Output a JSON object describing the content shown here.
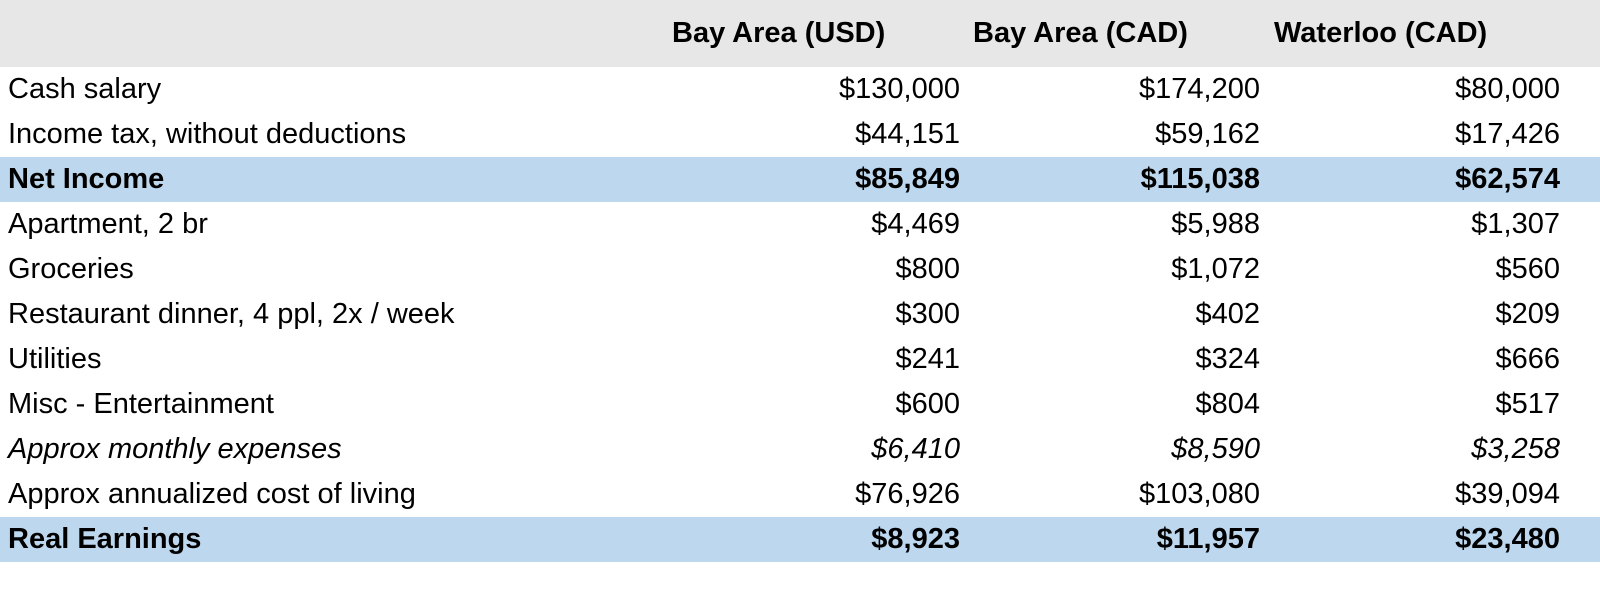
{
  "table": {
    "columns": [
      "Bay Area (USD)",
      "Bay Area (CAD)",
      "Waterloo (CAD)"
    ],
    "rows": [
      {
        "label": "Cash salary",
        "values": [
          "$130,000",
          "$174,200",
          "$80,000"
        ]
      },
      {
        "label": "Income tax, without deductions",
        "values": [
          "$44,151",
          "$59,162",
          "$17,426"
        ]
      },
      {
        "label": "Net Income",
        "values": [
          "$85,849",
          "$115,038",
          "$62,574"
        ],
        "style": "highlight"
      },
      {
        "label": "Apartment, 2 br",
        "values": [
          "$4,469",
          "$5,988",
          "$1,307"
        ]
      },
      {
        "label": "Groceries",
        "values": [
          "$800",
          "$1,072",
          "$560"
        ]
      },
      {
        "label": "Restaurant dinner, 4 ppl, 2x / week",
        "values": [
          "$300",
          "$402",
          "$209"
        ]
      },
      {
        "label": "Utilities",
        "values": [
          "$241",
          "$324",
          "$666"
        ]
      },
      {
        "label": "Misc - Entertainment",
        "values": [
          "$600",
          "$804",
          "$517"
        ]
      },
      {
        "label": "Approx monthly expenses",
        "values": [
          "$6,410",
          "$8,590",
          "$3,258"
        ],
        "style": "italic"
      },
      {
        "label": "Approx annualized cost of living",
        "values": [
          "$76,926",
          "$103,080",
          "$39,094"
        ]
      },
      {
        "label": "Real Earnings",
        "values": [
          "$8,923",
          "$11,957",
          "$23,480"
        ],
        "style": "highlight"
      }
    ]
  }
}
